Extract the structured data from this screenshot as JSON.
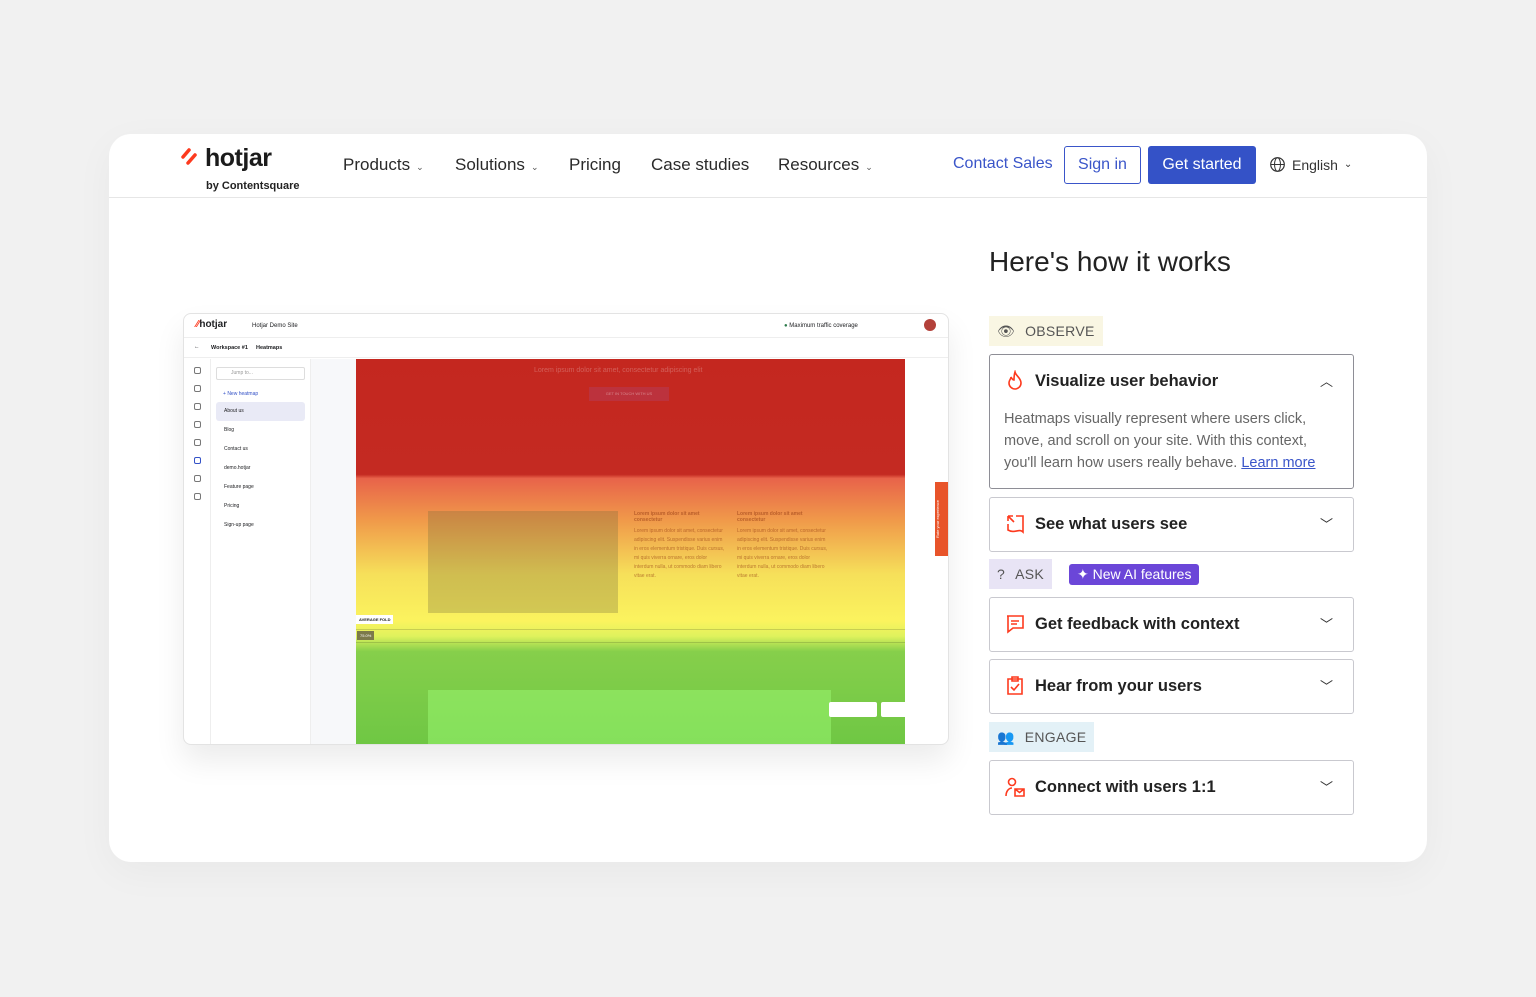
{
  "header": {
    "logo": "hotjar",
    "logo_sub": "by Contentsquare",
    "nav": [
      "Products",
      "Solutions",
      "Pricing",
      "Case studies",
      "Resources"
    ],
    "contact": "Contact Sales",
    "signin": "Sign in",
    "get_started": "Get started",
    "language": "English"
  },
  "mock": {
    "logo": "hotjar",
    "site": "Hotjar Demo Site",
    "coverage": "Maximum traffic coverage",
    "breadcrumb": [
      "Workspace #1",
      "Heatmaps"
    ],
    "search_placeholder": "Jump to...",
    "new_heatmap": "New heatmap",
    "pages": [
      "About us",
      "Blog",
      "Contact us",
      "demo.hotjar",
      "Feature page",
      "Pricing",
      "Sign-up page"
    ],
    "hero_text": "Lorem ipsum dolor sit amet, consectetur adipiscing elit",
    "hero_button": "GET IN TOUCH WITH US",
    "col_title": "Lorem ipsum dolor sit amet consectetur",
    "col_body": "Lorem ipsum dolor sit amet, consectetur adipiscing elit. Suspendisse varius enim in eros elementum tristique. Duis cursus, mi quis viverra ornare, eros dolor interdum nulla, ut commodo diam libero vitae erat.",
    "fold_label": "AVERAGE FOLD",
    "fold_pct": "75.0%",
    "feedback_tab": "Rate your experience"
  },
  "main": {
    "title": "Here's how it works",
    "sections": {
      "observe": "OBSERVE",
      "ask": "ASK",
      "ai_badge": "New AI features",
      "engage": "ENGAGE"
    },
    "items": [
      {
        "title": "Visualize user behavior",
        "body": "Heatmaps visually represent where users click, move, and scroll on your site. With this context, you'll learn how users really behave.",
        "link": "Learn more",
        "expanded": true
      },
      {
        "title": "See what users see",
        "expanded": false
      },
      {
        "title": "Get feedback with context",
        "expanded": false
      },
      {
        "title": "Hear from your users",
        "expanded": false
      },
      {
        "title": "Connect with users 1:1",
        "expanded": false
      }
    ]
  },
  "colors": {
    "accent": "#3452c7",
    "brand": "#fd3a1e",
    "ai": "#6b46d8",
    "observe_bg": "#f9f6e3",
    "ask_bg": "#e8e4f5",
    "engage_bg": "#e3f1f7"
  }
}
